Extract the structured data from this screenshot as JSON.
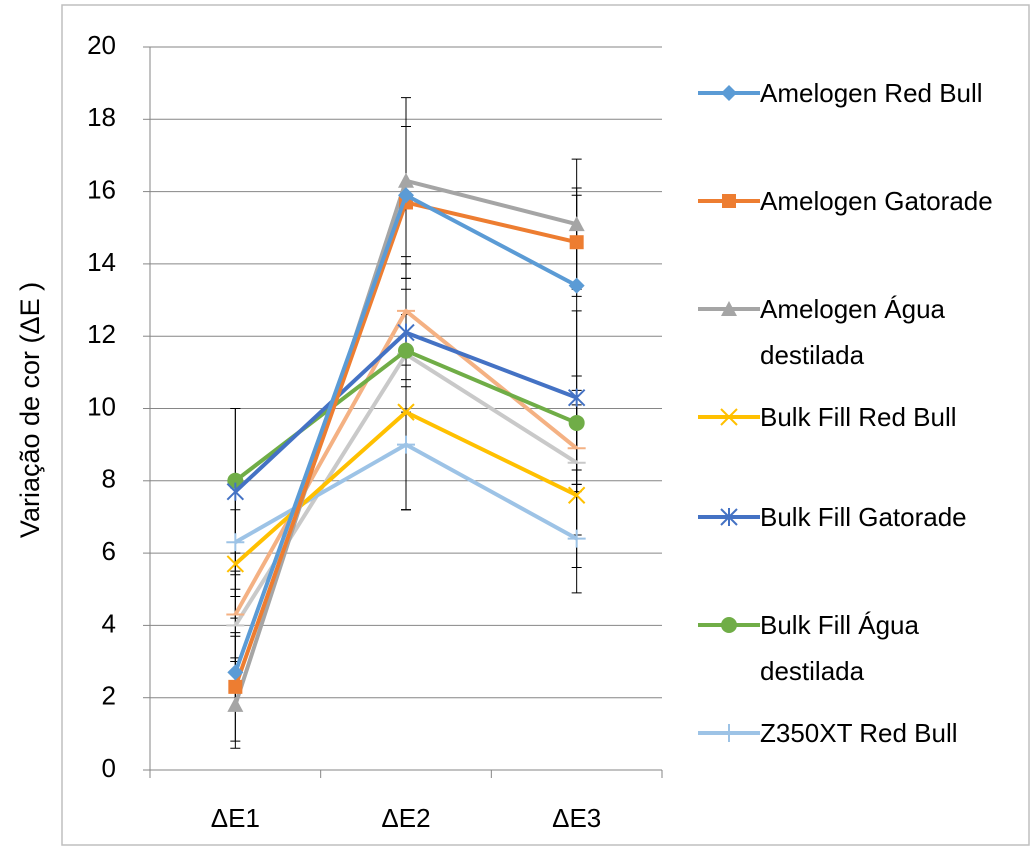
{
  "chart_data": {
    "type": "line",
    "y_label": "Variação de cor (ΔE )",
    "categories": [
      "ΔE1",
      "ΔE2",
      "ΔE3"
    ],
    "ylim": [
      0,
      20
    ],
    "yticks": [
      0,
      2,
      4,
      6,
      8,
      10,
      12,
      14,
      16,
      18,
      20
    ],
    "grid": true,
    "series": [
      {
        "name": "Amelogen Red Bull",
        "color": "#5b9bd5",
        "marker": "diamond",
        "values": [
          2.7,
          15.9,
          13.4
        ],
        "errors": [
          1.0,
          1.9,
          2.5
        ]
      },
      {
        "name": "Amelogen Gatorade",
        "color": "#ed7d31",
        "marker": "square",
        "values": [
          2.3,
          15.7,
          14.6
        ],
        "errors": [
          1.5,
          2.1,
          1.5
        ]
      },
      {
        "name": "Amelogen Água destilada",
        "color": "#a5a5a5",
        "marker": "triangle",
        "values": [
          1.8,
          16.3,
          15.1
        ],
        "errors": [
          1.2,
          2.3,
          1.8
        ]
      },
      {
        "name": "Bulk Fill Red Bull",
        "color": "#ffc000",
        "marker": "x",
        "values": [
          5.7,
          9.9,
          7.6
        ],
        "errors": [
          1.5,
          2.7,
          2.0
        ]
      },
      {
        "name": "Bulk Fill Gatorade",
        "color": "#4472c4",
        "marker": "star",
        "values": [
          7.7,
          12.1,
          10.3
        ],
        "errors": [
          2.3,
          1.5,
          2.4
        ]
      },
      {
        "name": "Bulk Fill Água destilada",
        "color": "#70ad47",
        "marker": "circle",
        "values": [
          8.0,
          11.6,
          9.6
        ],
        "errors": [
          2.0,
          1.7,
          1.3
        ]
      },
      {
        "name": "Z350XT Red Bull",
        "color": "#9dc3e6",
        "marker": "plus",
        "values": [
          6.3,
          9.0,
          6.4
        ],
        "errors": [
          1.5,
          1.8,
          1.5
        ]
      },
      {
        "color": "#f4b183",
        "marker": "dash",
        "values": [
          4.3,
          12.7,
          8.9
        ],
        "errors": [
          1.2,
          1.5,
          1.2
        ]
      },
      {
        "color": "#c9c9c9",
        "marker": "dash",
        "values": [
          4.0,
          11.5,
          8.5
        ],
        "errors": [
          1.0,
          4.3,
          2.0
        ]
      }
    ]
  }
}
